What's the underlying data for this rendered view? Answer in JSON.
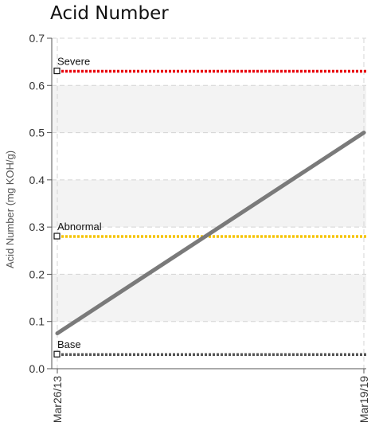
{
  "chart_data": {
    "type": "line",
    "title": "Acid Number",
    "ylabel": "Acid Number (mg KOH/g)",
    "xlabel": "",
    "ylim": [
      0,
      0.7
    ],
    "yticks": [
      "0.0",
      "0.1",
      "0.2",
      "0.3",
      "0.4",
      "0.5",
      "0.6",
      "0.7"
    ],
    "x": [
      "Mar26/13",
      "Mar19/19"
    ],
    "series": [
      {
        "values": [
          0.075,
          0.5
        ],
        "color": "#7a7a7a"
      }
    ],
    "thresholds": [
      {
        "label": "Severe",
        "value": 0.63,
        "color": "#e8000b"
      },
      {
        "label": "Abnormal",
        "value": 0.28,
        "color": "#f5c400"
      },
      {
        "label": "Base",
        "value": 0.03,
        "color": "#555555"
      }
    ],
    "grid": true,
    "bands": [
      {
        "from": 0.1,
        "to": 0.2,
        "color": "#f3f3f3"
      },
      {
        "from": 0.3,
        "to": 0.4,
        "color": "#f3f3f3"
      },
      {
        "from": 0.5,
        "to": 0.6,
        "color": "#f3f3f3"
      }
    ]
  }
}
